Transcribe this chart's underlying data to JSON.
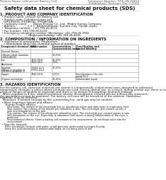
{
  "header_left": "Product Name: Lithium Ion Battery Cell",
  "header_right_line1": "Substance Number: SDS-LIB-00010",
  "header_right_line2": "Established / Revision: Dec.7.2018",
  "title": "Safety data sheet for chemical products (SDS)",
  "section1_title": "1. PRODUCT AND COMPANY IDENTIFICATION",
  "section1_lines": [
    "  • Product name: Lithium Ion Battery Cell",
    "  • Product code: Cylindrical-type cell",
    "    (IFR18650U, IFR18650L, IFR18650A)",
    "  • Company name:       Banyu Eneygy Co., Ltd., Mobile Energy Company",
    "  • Address:             2-2-1  Kamimotoyuen, Sumoto-City, Hyogo, Japan",
    "  • Telephone number:  +81-799-26-4111",
    "  • Fax number: +81-799-26-4120",
    "  • Emergency telephone number (Weekdays) +81-799-26-3962",
    "                                (Night and holiday) +81-799-26-4101"
  ],
  "section2_title": "2. COMPOSITION / INFORMATION ON INGREDIENTS",
  "section2_intro": "  • Substance or preparation: Preparation",
  "section2_sub": "    • Information about the chemical nature of product:",
  "table_headers": [
    "Component chemical name",
    "CAS number",
    "Concentration /\nConcentration range",
    "Classification and\nhazard labeling"
  ],
  "table_col1": [
    "Several Names",
    "Lithium cobalt tantalate\n(LiMnCoNiO2)",
    "Iron",
    "Aluminum",
    "Graphite\n(Mixed in graphite-1)\n(JM-No.in graphite-1)",
    "Copper",
    "Organic electrolyte"
  ],
  "table_col2": [
    "",
    "",
    "7439-89-6\n7429-90-5",
    "",
    "17092-12-5\n17052-44-2",
    "7440-50-8",
    ""
  ],
  "table_col3": [
    "",
    "30-60%",
    "15-25%\n2-5%",
    "",
    "10-25%",
    "5-15%",
    "10-20%"
  ],
  "table_col4": [
    "",
    "",
    "-\n-",
    "",
    "-",
    "Sensitization of the skin\ngroup No.2",
    "Inflammable liquid"
  ],
  "section3_title": "3. HAZARDS IDENTIFICATION",
  "section3_para": [
    "For the battery cell, chemical materials are stored in a hermetically sealed metal case, designed to withstand",
    "temperature changes in places where products are used. During normal use, as a result, during normal use, there is no",
    "physical danger of ignition or explosion and there is no danger of hazardous materials leakage.",
    "   When exposed to a fire, added mechanical shocks, decomposed, sintered electro without any measures,",
    "the gas breaks cannot be operated. The battery cell case will be breached of the extreme. Hazardous",
    "materials may be released.",
    "   Moreover, if heated strongly by the surrounding fire, solid gas may be emitted."
  ],
  "section3_bullet1": "  • Most important hazard and effects:",
  "section3_human_title": "      Human health effects:",
  "section3_human_lines": [
    "         Inhalation: The release of the electrolyte has an anesthesia action and stimulates in respiratory tract.",
    "         Skin contact: The release of the electrolyte stimulates a skin. The electrolyte skin contact causes a",
    "         sore and stimulation on the skin.",
    "         Eye contact: The release of the electrolyte stimulates eyes. The electrolyte eye contact causes a sore",
    "         and stimulation on the eye. Especially, a substance that causes a strong inflammation of the eyes is",
    "         produced.",
    "         Environmental effects: Since a battery cell remains in the environment, do not throw out it into the",
    "         environment."
  ],
  "section3_bullet2": "  • Specific hazards:",
  "section3_specific": [
    "      If the electrolyte contacts with water, it will generate detrimental hydrogen fluoride.",
    "      Since the said electrolyte is inflammable liquid, do not bring close to fire."
  ],
  "bg_color": "#ffffff",
  "text_color": "#111111",
  "title_color": "#111111",
  "header_line_color": "#999999",
  "table_line_color": "#999999"
}
